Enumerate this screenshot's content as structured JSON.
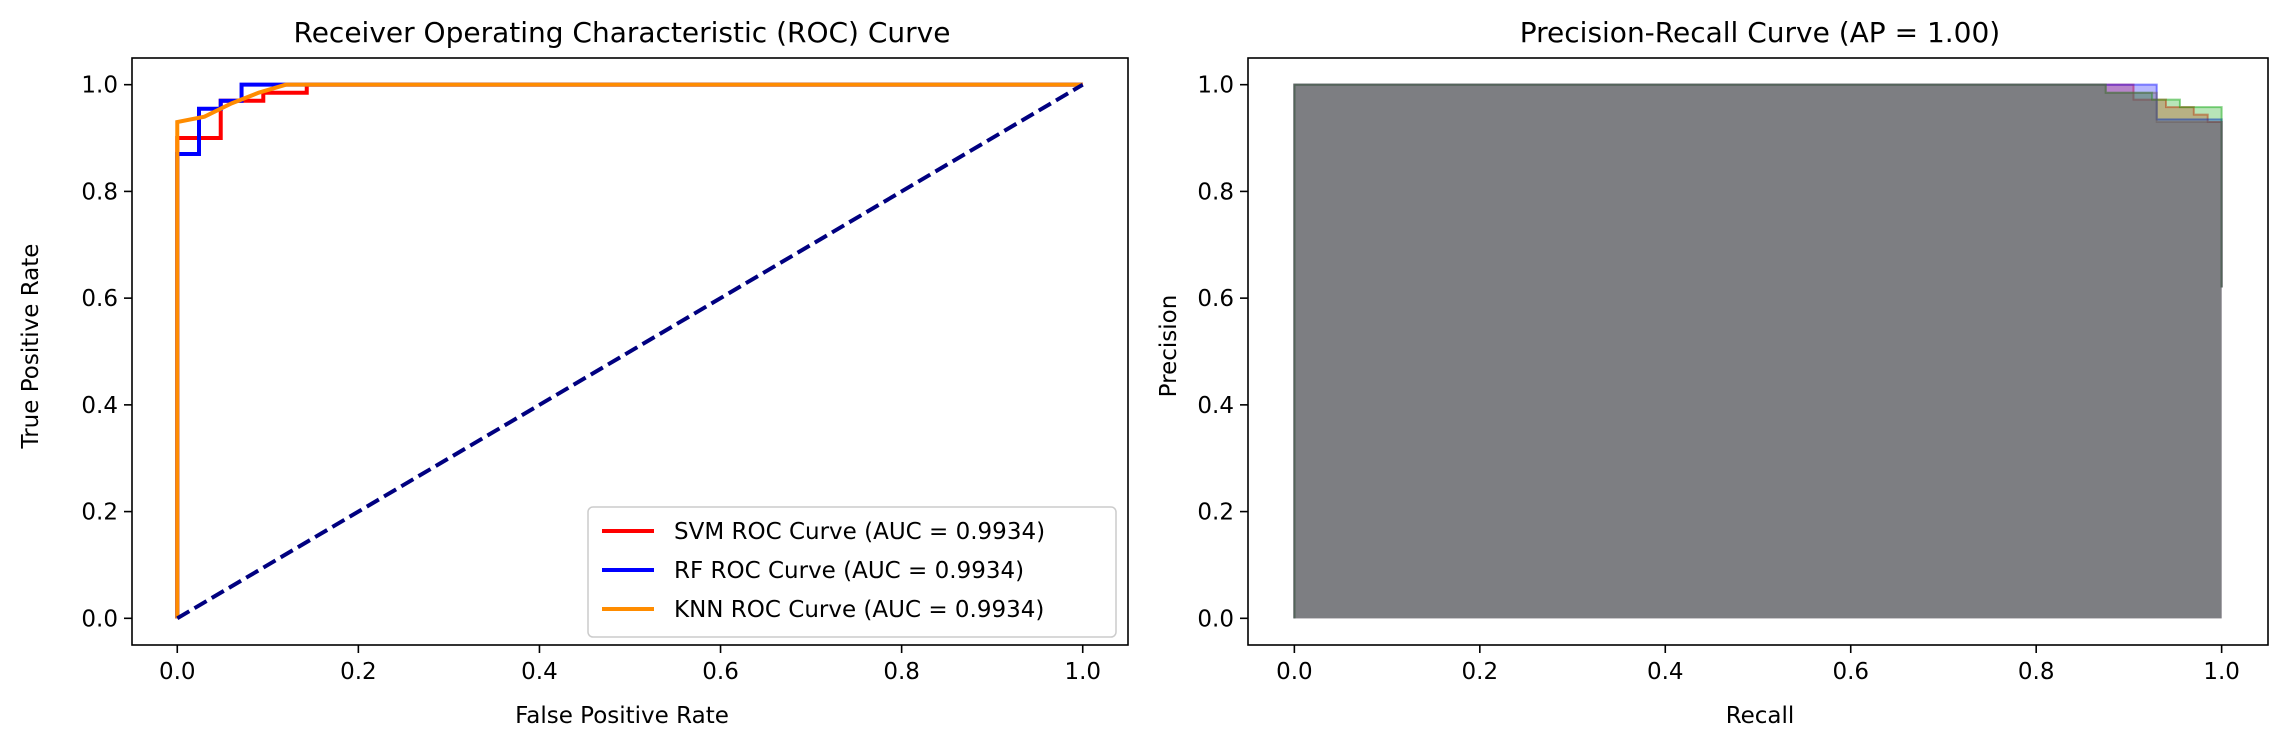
{
  "chart_data": [
    {
      "type": "line",
      "title": "Receiver Operating Characteristic (ROC) Curve",
      "xlabel": "False Positive Rate",
      "ylabel": "True Positive Rate",
      "xlim": [
        -0.05,
        1.05
      ],
      "ylim": [
        -0.05,
        1.05
      ],
      "xticks": [
        0.0,
        0.2,
        0.4,
        0.6,
        0.8,
        1.0
      ],
      "yticks": [
        0.0,
        0.2,
        0.4,
        0.6,
        0.8,
        1.0
      ],
      "xtick_labels": [
        "0.0",
        "0.2",
        "0.4",
        "0.6",
        "0.8",
        "1.0"
      ],
      "ytick_labels": [
        "0.0",
        "0.2",
        "0.4",
        "0.6",
        "0.8",
        "1.0"
      ],
      "grid": false,
      "legend_position": "lower-right",
      "series": [
        {
          "name": "SVM ROC Curve (AUC = 0.9934)",
          "color": "#ff0000",
          "x": [
            0.0,
            0.0,
            0.0,
            0.024,
            0.024,
            0.048,
            0.048,
            0.095,
            0.095,
            0.143,
            0.143,
            1.0
          ],
          "y": [
            0.0,
            0.9,
            0.9,
            0.9,
            0.9,
            0.9,
            0.97,
            0.97,
            0.985,
            0.985,
            1.0,
            1.0
          ]
        },
        {
          "name": "RF ROC Curve (AUC = 0.9934)",
          "color": "#0000ff",
          "x": [
            0.0,
            0.0,
            0.024,
            0.024,
            0.048,
            0.048,
            0.071,
            0.071,
            1.0
          ],
          "y": [
            0.0,
            0.87,
            0.87,
            0.955,
            0.955,
            0.97,
            0.97,
            1.0,
            1.0
          ]
        },
        {
          "name": "KNN ROC Curve (AUC = 0.9934)",
          "color": "#ff8c00",
          "x": [
            0.0,
            0.0,
            0.03,
            0.06,
            0.09,
            0.12,
            1.0
          ],
          "y": [
            0.0,
            0.93,
            0.94,
            0.965,
            0.985,
            1.0,
            1.0
          ]
        },
        {
          "color": "#000080",
          "style": "dashed",
          "x": [
            0.0,
            1.0
          ],
          "y": [
            0.0,
            1.0
          ]
        }
      ]
    },
    {
      "type": "area",
      "title": "Precision-Recall Curve (AP = 1.00)",
      "xlabel": "Recall",
      "ylabel": "Precision",
      "xlim": [
        -0.05,
        1.05
      ],
      "ylim": [
        -0.05,
        1.05
      ],
      "xticks": [
        0.0,
        0.2,
        0.4,
        0.6,
        0.8,
        1.0
      ],
      "yticks": [
        0.0,
        0.2,
        0.4,
        0.6,
        0.8,
        1.0
      ],
      "xtick_labels": [
        "0.0",
        "0.2",
        "0.4",
        "0.6",
        "0.8",
        "1.0"
      ],
      "ytick_labels": [
        "0.0",
        "0.2",
        "0.4",
        "0.6",
        "0.8",
        "1.0"
      ],
      "grid": false,
      "series": [
        {
          "color": "#ff0000",
          "x": [
            0.0,
            0.0,
            0.905,
            0.905,
            0.94,
            0.94,
            0.97,
            0.97,
            0.985,
            0.985,
            1.0,
            1.0
          ],
          "y": [
            0.0,
            1.0,
            1.0,
            0.972,
            0.972,
            0.958,
            0.958,
            0.944,
            0.944,
            0.93,
            0.93,
            0.62
          ]
        },
        {
          "color": "#0000ff",
          "x": [
            0.0,
            0.0,
            0.93,
            0.93,
            1.0,
            1.0
          ],
          "y": [
            0.0,
            1.0,
            1.0,
            0.935,
            0.935,
            0.62
          ]
        },
        {
          "color": "#00a000",
          "x": [
            0.0,
            0.0,
            0.875,
            0.875,
            0.9,
            0.9,
            0.925,
            0.925,
            0.955,
            0.955,
            0.97,
            0.97,
            1.0,
            1.0
          ],
          "y": [
            0.0,
            1.0,
            1.0,
            0.985,
            0.985,
            0.985,
            0.985,
            0.972,
            0.972,
            0.958,
            0.958,
            0.958,
            0.958,
            0.62
          ]
        },
        {
          "color": "#6b5a5a",
          "x": [
            0.0,
            0.0,
            0.875,
            0.875,
            0.93,
            0.93,
            1.0,
            1.0
          ],
          "y": [
            0.0,
            1.0,
            1.0,
            0.985,
            0.985,
            0.93,
            0.93,
            0.62
          ]
        }
      ]
    }
  ]
}
